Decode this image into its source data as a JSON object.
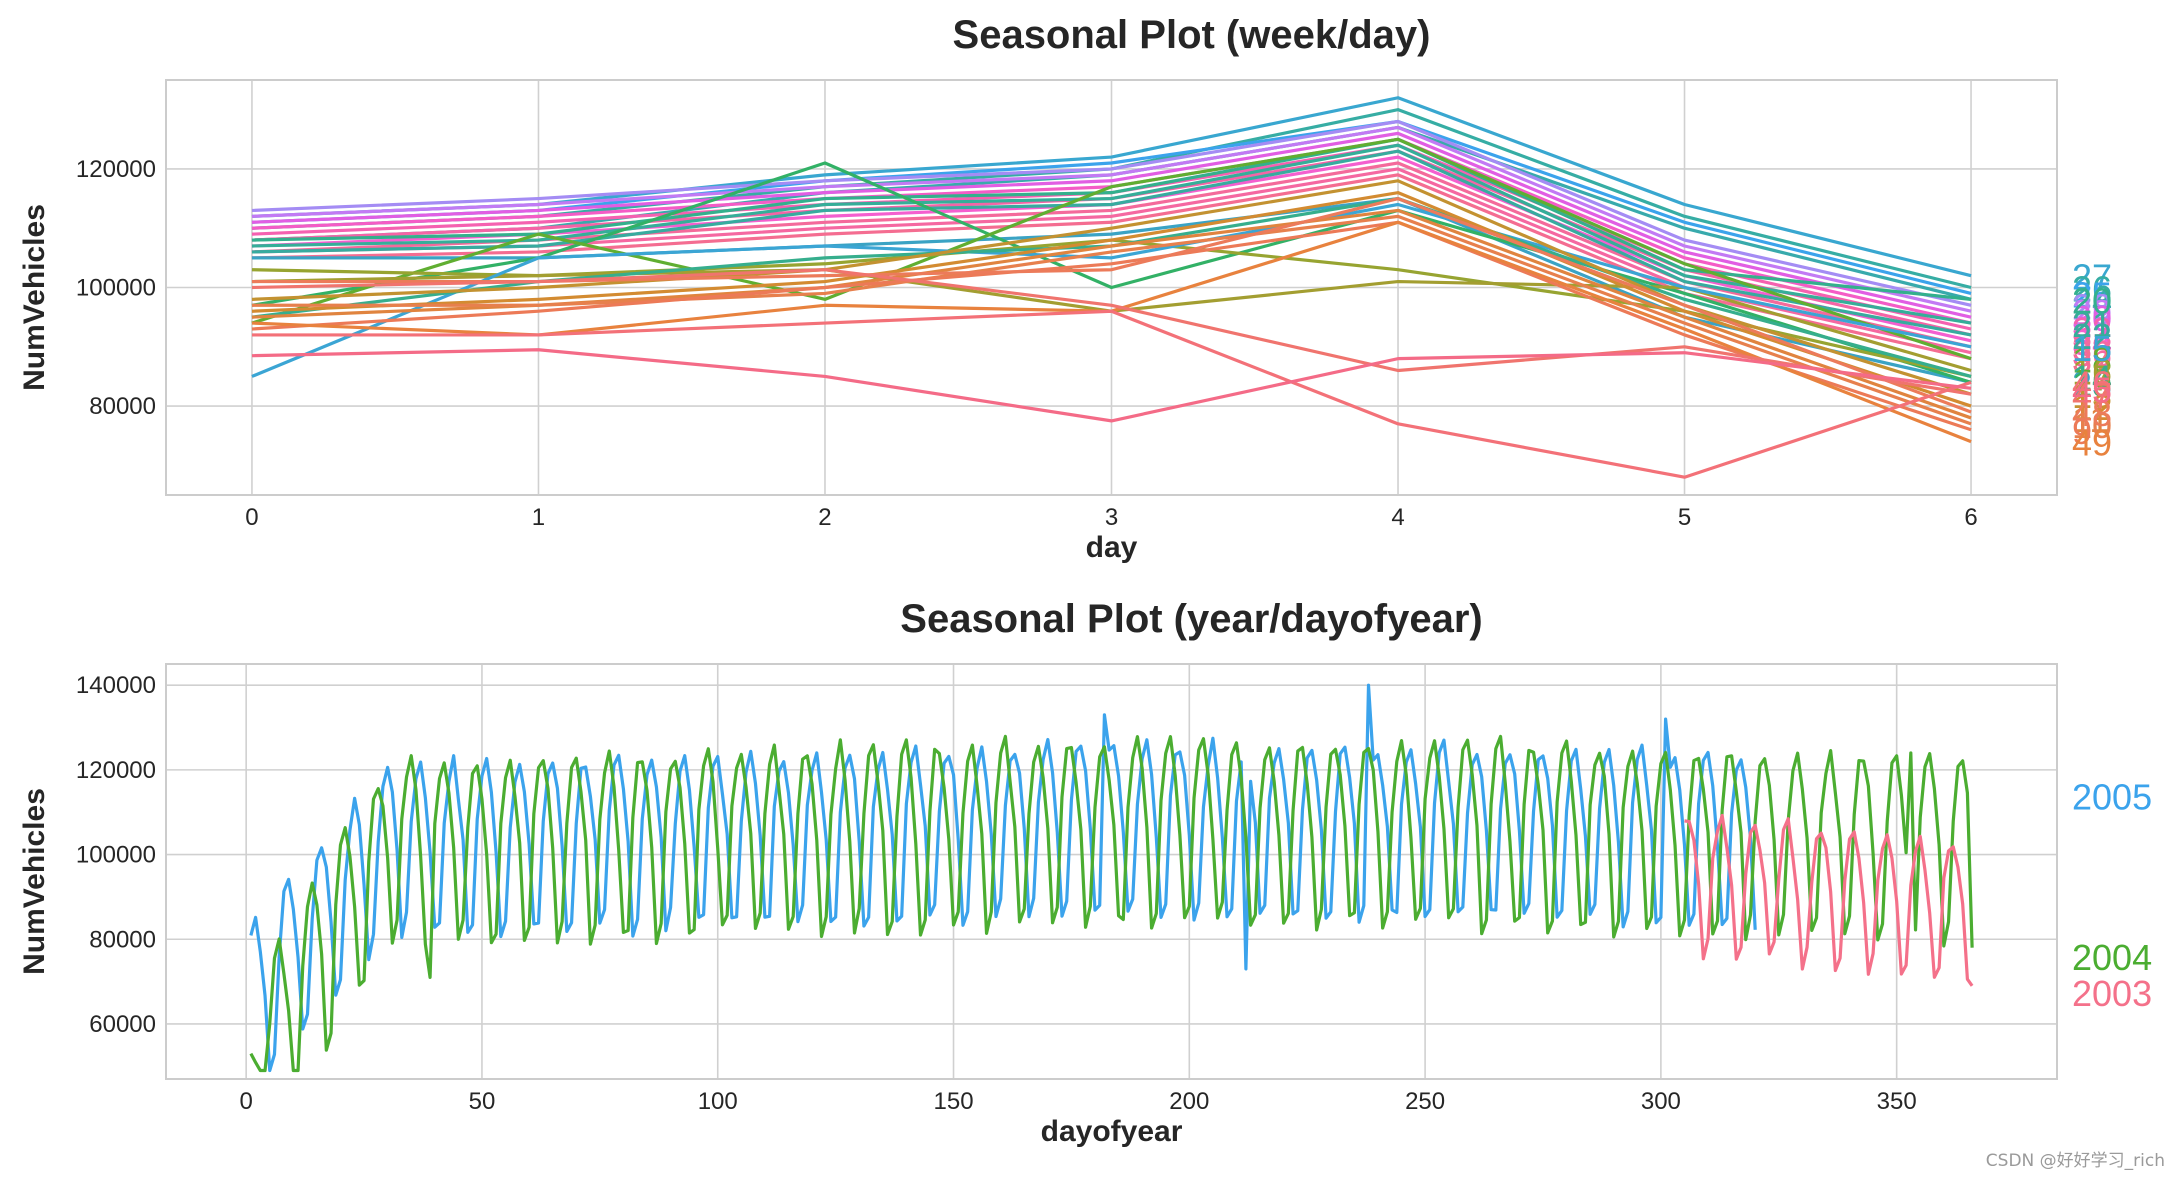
{
  "watermark": "CSDN @好好学习_rich",
  "chart_data": [
    {
      "type": "line",
      "title": "Seasonal Plot (week/day)",
      "xlabel": "day",
      "ylabel": "NumVehicles",
      "xlim": [
        -0.3,
        6.3
      ],
      "ylim": [
        65000,
        135000
      ],
      "xticks": [
        0,
        1,
        2,
        3,
        4,
        5,
        6
      ],
      "yticks": [
        80000,
        100000,
        120000
      ],
      "x": [
        0,
        1,
        2,
        3,
        4,
        5,
        6
      ],
      "series": [
        {
          "name": "27",
          "color": "#39a7d0",
          "values": [
            112000,
            114000,
            119000,
            122000,
            132000,
            114000,
            102000
          ]
        },
        {
          "name": "26",
          "color": "#36ada4",
          "values": [
            110000,
            112000,
            117000,
            120000,
            130000,
            112000,
            100000
          ]
        },
        {
          "name": "25",
          "color": "#3ba3ec",
          "values": [
            111000,
            113000,
            118000,
            121000,
            128000,
            111000,
            99000
          ]
        },
        {
          "name": "24",
          "color": "#38aaac",
          "values": [
            108000,
            110000,
            116000,
            119000,
            127000,
            110000,
            98000
          ]
        },
        {
          "name": "28",
          "color": "#a48cf4",
          "values": [
            113000,
            115000,
            118000,
            120000,
            128000,
            108000,
            97000
          ]
        },
        {
          "name": "29",
          "color": "#c27af4",
          "values": [
            112000,
            114000,
            117000,
            119000,
            127000,
            107000,
            96000
          ]
        },
        {
          "name": "30",
          "color": "#e15ee3",
          "values": [
            111000,
            113000,
            116000,
            118000,
            126000,
            106000,
            95000
          ]
        },
        {
          "name": "31",
          "color": "#f45cc6",
          "values": [
            110000,
            112000,
            115000,
            117000,
            125000,
            105000,
            94000
          ]
        },
        {
          "name": "32",
          "color": "#f561b0",
          "values": [
            109000,
            111000,
            114000,
            116000,
            124000,
            104000,
            93000
          ]
        },
        {
          "name": "33",
          "color": "#f564a6",
          "values": [
            108000,
            110000,
            113000,
            115000,
            123000,
            103000,
            92000
          ]
        },
        {
          "name": "34",
          "color": "#f45fcf",
          "values": [
            107000,
            109000,
            112000,
            114000,
            122000,
            102000,
            91000
          ]
        },
        {
          "name": "35",
          "color": "#f46a9b",
          "values": [
            106000,
            108000,
            111000,
            113000,
            121000,
            101000,
            90000
          ]
        },
        {
          "name": "36",
          "color": "#f568a1",
          "values": [
            106000,
            107000,
            110000,
            112000,
            120000,
            100000,
            89000
          ]
        },
        {
          "name": "37",
          "color": "#f46d91",
          "values": [
            105000,
            106000,
            109000,
            111000,
            119000,
            99000,
            88000
          ]
        },
        {
          "name": "20",
          "color": "#33b08d",
          "values": [
            108000,
            109000,
            115000,
            116000,
            125000,
            103000,
            98000
          ]
        },
        {
          "name": "21",
          "color": "#35ae99",
          "values": [
            107000,
            108000,
            114000,
            115000,
            124000,
            102000,
            94000
          ]
        },
        {
          "name": "22",
          "color": "#37ab9f",
          "values": [
            106000,
            107000,
            113000,
            114000,
            123000,
            101000,
            92000
          ]
        },
        {
          "name": "23",
          "color": "#3aa3c4",
          "values": [
            105000,
            105000,
            107000,
            109000,
            115000,
            95000,
            84000
          ]
        },
        {
          "name": "19",
          "color": "#32b166",
          "values": [
            97000,
            105000,
            121000,
            100000,
            113000,
            99000,
            84000
          ]
        },
        {
          "name": "18",
          "color": "#60ae31",
          "values": [
            94000,
            109000,
            98000,
            117000,
            125000,
            104000,
            88000
          ]
        },
        {
          "name": "17",
          "color": "#97a431",
          "values": [
            103000,
            102000,
            104000,
            108000,
            103000,
            96000,
            85000
          ]
        },
        {
          "name": "16",
          "color": "#a39e31",
          "values": [
            101000,
            102000,
            103000,
            96000,
            101000,
            100000,
            86000
          ]
        },
        {
          "name": "15",
          "color": "#3ba5d4",
          "values": [
            85000,
            105000,
            107000,
            105000,
            114000,
            100000,
            90000
          ]
        },
        {
          "name": "14",
          "color": "#36ae8d",
          "values": [
            95000,
            101000,
            105000,
            107000,
            115000,
            98000,
            85000
          ]
        },
        {
          "name": "13",
          "color": "#c39231",
          "values": [
            98000,
            100000,
            103000,
            110000,
            118000,
            97000,
            82000
          ]
        },
        {
          "name": "12",
          "color": "#d38b31",
          "values": [
            96000,
            98000,
            101000,
            108000,
            116000,
            96000,
            80000
          ]
        },
        {
          "name": "11",
          "color": "#e0843f",
          "values": [
            95000,
            97000,
            100000,
            107000,
            113000,
            95000,
            78000
          ]
        },
        {
          "name": "10",
          "color": "#e7804d",
          "values": [
            97000,
            97000,
            99000,
            106000,
            112000,
            94000,
            77000
          ]
        },
        {
          "name": "9",
          "color": "#ec7a57",
          "values": [
            93000,
            96000,
            100000,
            104000,
            111000,
            92000,
            76000
          ]
        },
        {
          "name": "49",
          "color": "#e8823e",
          "values": [
            94000,
            92000,
            97000,
            96000,
            111000,
            93000,
            74000
          ]
        },
        {
          "name": "48",
          "color": "#ec7b5a",
          "values": [
            101000,
            101000,
            102000,
            103000,
            115000,
            97000,
            79000
          ]
        },
        {
          "name": "47",
          "color": "#f0746e",
          "values": [
            100000,
            101000,
            103000,
            97000,
            86000,
            90000,
            82000
          ]
        },
        {
          "name": "46",
          "color": "#f37178",
          "values": [
            92000,
            92000,
            94000,
            96000,
            77000,
            68000,
            84000
          ]
        },
        {
          "name": "45",
          "color": "#f46b87",
          "values": [
            88500,
            89500,
            85000,
            77500,
            88000,
            89000,
            83000
          ]
        }
      ],
      "series_labels": [
        "27",
        "26",
        "25",
        "24",
        "28",
        "29",
        "30",
        "31",
        "32",
        "33",
        "34",
        "35",
        "36",
        "37",
        "20",
        "21",
        "22",
        "23",
        "19",
        "18",
        "17",
        "16",
        "15",
        "14",
        "13",
        "12",
        "11",
        "10",
        "9",
        "49",
        "48",
        "47",
        "46",
        "45"
      ]
    },
    {
      "type": "line",
      "title": "Seasonal Plot (year/dayofyear)",
      "xlabel": "dayofyear",
      "ylabel": "NumVehicles",
      "xlim": [
        -17,
        384
      ],
      "ylim": [
        47000,
        145000
      ],
      "xticks": [
        0,
        50,
        100,
        150,
        200,
        250,
        300,
        350
      ],
      "yticks": [
        60000,
        80000,
        100000,
        120000,
        140000
      ],
      "series": [
        {
          "name": "2005",
          "color": "#3ba3ec",
          "x_start": 1,
          "x_end": 320,
          "base": [
            70000,
            115000
          ],
          "amplitude": 14000,
          "period": 7,
          "spikes": [
            [
              238,
              140000
            ],
            [
              182,
              133000
            ],
            [
              212,
              73000
            ],
            [
              301,
              132000
            ]
          ]
        },
        {
          "name": "2004",
          "color": "#4bad31",
          "x_start": 1,
          "x_end": 366,
          "base": [
            55000,
            118000
          ],
          "amplitude": 15000,
          "period": 7,
          "spikes": [
            [
              1,
              53000
            ],
            [
              39,
              71000
            ],
            [
              353,
              124000
            ],
            [
              366,
              78000
            ]
          ]
        },
        {
          "name": "2003",
          "color": "#f4718a",
          "x_start": 305,
          "x_end": 366,
          "base": [
            98000,
            92000
          ],
          "amplitude": 11000,
          "period": 7,
          "spikes": [
            [
              366,
              69000
            ]
          ]
        }
      ]
    }
  ]
}
